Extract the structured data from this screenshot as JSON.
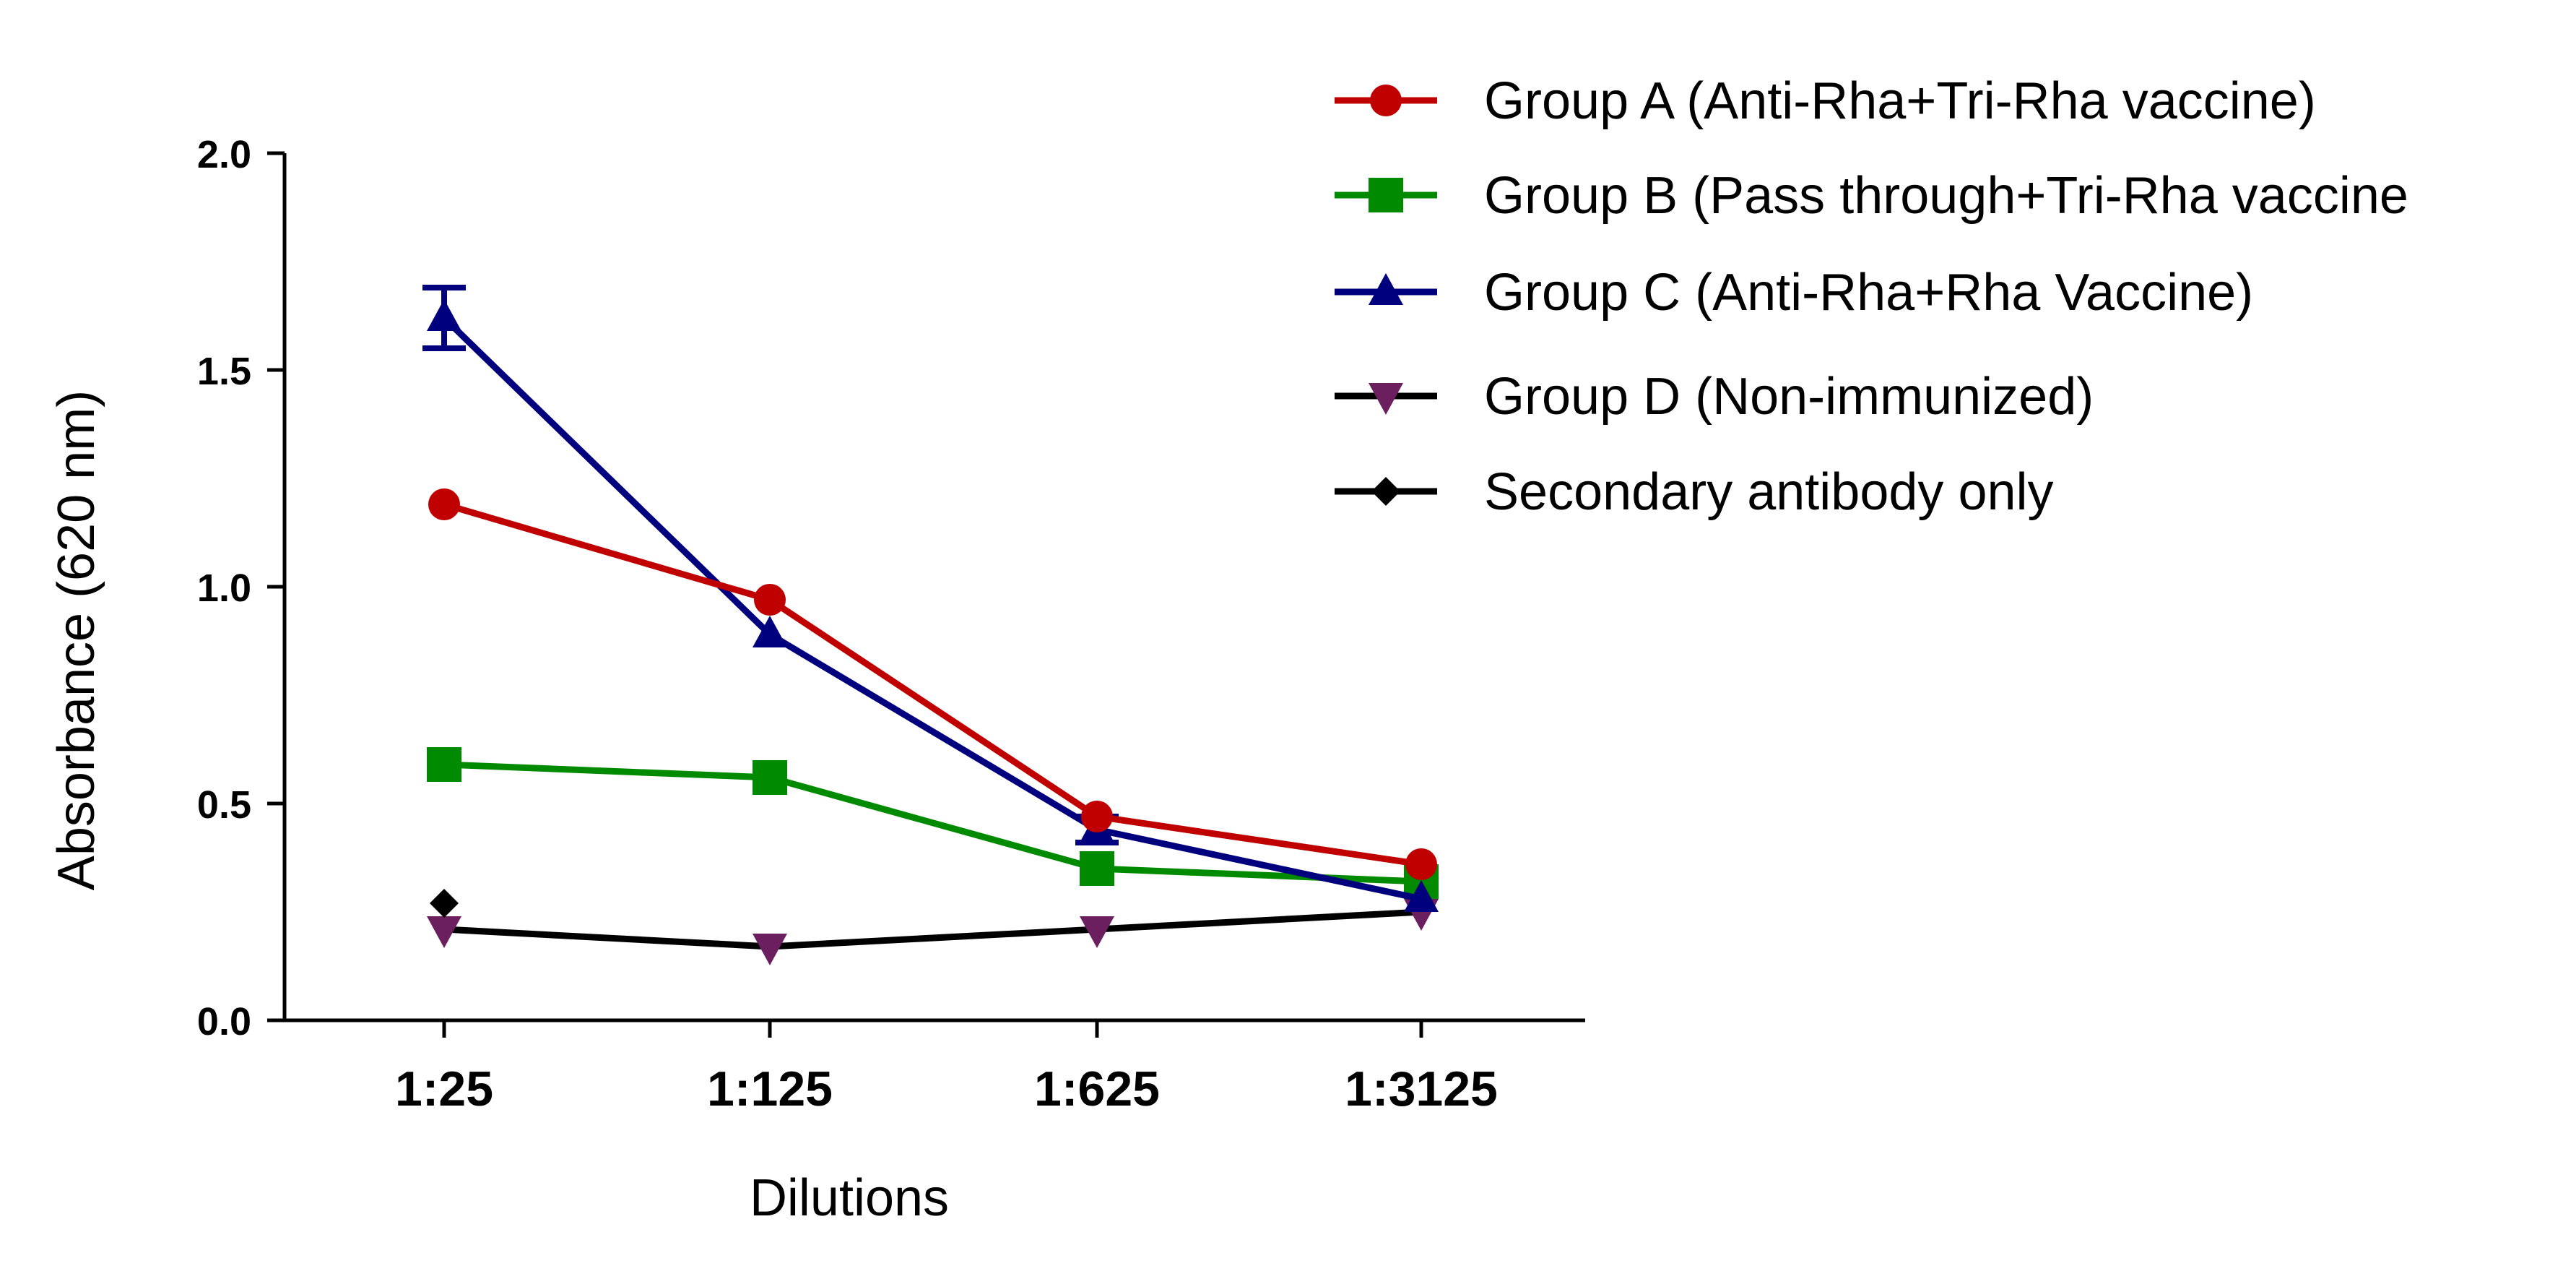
{
  "chart_data": {
    "type": "line",
    "title": "",
    "xlabel": "Dilutions",
    "ylabel": "Absorbance (620 nm)",
    "categories": [
      "1:25",
      "1:125",
      "1:625",
      "1:3125"
    ],
    "ylim": [
      0,
      2.0
    ],
    "yticks": [
      0.0,
      0.5,
      1.0,
      1.5,
      2.0
    ],
    "ytick_labels": [
      "0.0",
      "0.5",
      "1.0",
      "1.5",
      "2.0"
    ],
    "legend_position": "top-right",
    "series": [
      {
        "name": "Group A (Anti-Rha+Tri-Rha vaccine)",
        "color": "#c00000",
        "marker": "circle",
        "values": [
          1.19,
          0.97,
          0.47,
          0.36
        ]
      },
      {
        "name": "Group B (Pass through+Tri-Rha vaccine",
        "color": "#008a00",
        "marker": "square",
        "values": [
          0.59,
          0.56,
          0.35,
          0.32
        ]
      },
      {
        "name": "Group C (Anti-Rha+Rha Vaccine)",
        "color": "#00007f",
        "marker": "triangle-up",
        "values": [
          1.62,
          0.89,
          0.44,
          0.28
        ],
        "errors": [
          0.07,
          0.0,
          0.03,
          0.0
        ]
      },
      {
        "name": "Group D (Non-immunized)",
        "color": "#6b1f5e",
        "line_color": "#000000",
        "marker": "triangle-down",
        "values": [
          0.21,
          0.17,
          0.21,
          0.25
        ]
      },
      {
        "name": "Secondary antibody only",
        "color": "#000000",
        "marker": "diamond",
        "values": [
          0.27,
          null,
          null,
          null
        ]
      }
    ]
  }
}
